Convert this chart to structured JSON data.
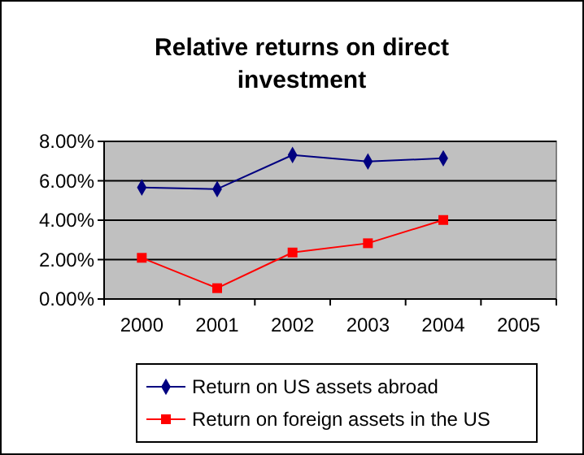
{
  "chart_data": {
    "type": "line",
    "title": "Relative returns on direct investment",
    "categories": [
      "2000",
      "2001",
      "2002",
      "2003",
      "2004",
      "2005"
    ],
    "series": [
      {
        "name": "Return on US assets abroad",
        "color": "#000080",
        "marker": "diamond",
        "values": [
          5.66,
          5.58,
          7.31,
          6.98,
          7.14,
          null
        ]
      },
      {
        "name": "Return on foreign assets in the US",
        "color": "#ff0000",
        "marker": "square",
        "values": [
          2.09,
          0.55,
          2.36,
          2.83,
          4.01,
          null
        ]
      }
    ],
    "ylim": [
      0,
      8
    ],
    "yticks": [
      {
        "value": 0,
        "label": "0.00%"
      },
      {
        "value": 2,
        "label": "2.00%"
      },
      {
        "value": 4,
        "label": "4.00%"
      },
      {
        "value": 6,
        "label": "6.00%"
      },
      {
        "value": 8,
        "label": "8.00%"
      }
    ],
    "grid": "y",
    "legend": "bottom"
  }
}
